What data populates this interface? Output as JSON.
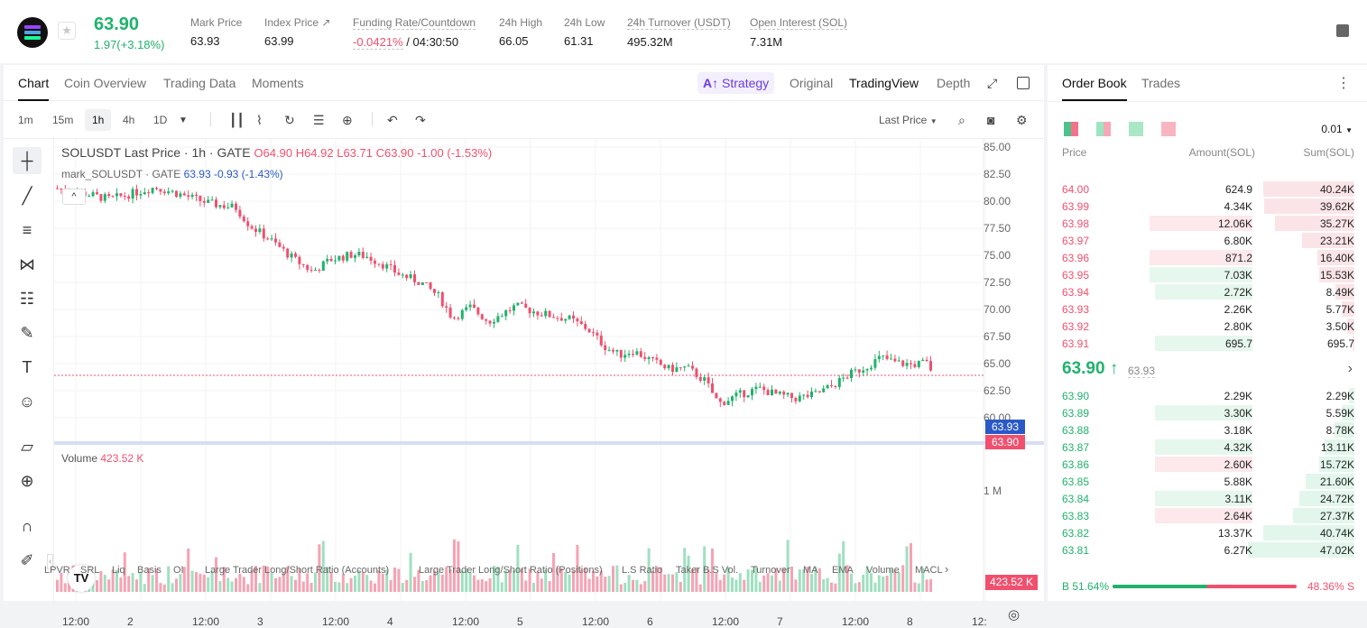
{
  "ticker": {
    "last_price": "63.90",
    "change": "1.97(+3.18%)",
    "stats": [
      {
        "label": "Mark Price",
        "value": "63.93"
      },
      {
        "label": "Index Price ↗",
        "value": "63.99"
      },
      {
        "label": "Funding Rate/Countdown",
        "value_rate": "-0.0421%",
        "value_countdown": "/ 04:30:50"
      },
      {
        "label": "24h High",
        "value": "66.05"
      },
      {
        "label": "24h Low",
        "value": "61.31"
      },
      {
        "label": "24h Turnover (USDT)",
        "value": "495.32M"
      },
      {
        "label": "Open Interest (SOL)",
        "value": "7.31M"
      }
    ]
  },
  "tabs": [
    "Chart",
    "Coin Overview",
    "Trading Data",
    "Moments"
  ],
  "view_tabs": {
    "strategy": "Strategy",
    "original": "Original",
    "tradingview": "TradingView",
    "depth": "Depth"
  },
  "intervals": [
    "1m",
    "15m",
    "1h",
    "4h",
    "1D"
  ],
  "price_select": "Last Price",
  "legend": {
    "symbol": "SOLUSDT Last Price · 1h · GATE",
    "ohlc": "O64.90 H64.92 L63.71 C63.90 -1.00 (-1.53%)",
    "mark_name": "mark_SOLUSDT · GATE",
    "mark_values": "63.93 -0.93 (-1.43%)",
    "volume_label": "Volume",
    "volume_value": "423.52 K"
  },
  "axis": {
    "y_ticks": [
      "85.00",
      "82.50",
      "80.00",
      "77.50",
      "75.00",
      "72.50",
      "70.00",
      "67.50",
      "65.00",
      "62.50",
      "60.00"
    ],
    "mark_tag": "63.93",
    "last_tag": "63.90",
    "vol_tick": "1 M",
    "vol_tag": "423.52 K",
    "x_ticks": [
      "12:00",
      "2",
      "12:00",
      "3",
      "12:00",
      "4",
      "12:00",
      "5",
      "12:00",
      "6",
      "12:00",
      "7",
      "12:00",
      "8",
      "12:"
    ]
  },
  "indicators": [
    "LPVR",
    "SRL",
    "Liq",
    "Basis",
    "OI",
    "Large Trader Long/Short Ratio (Accounts)",
    "Large Trader Long/Short Ratio (Positions)",
    "L.S Ratio",
    "Taker B.S Vol.",
    "Turnover",
    "MA",
    "EMA",
    "Volume",
    "MACL"
  ],
  "tv_logo": "TV",
  "orderbook": {
    "tabs": [
      "Order Book",
      "Trades"
    ],
    "precision": "0.01",
    "headers": {
      "price": "Price",
      "amount": "Amount(SOL)",
      "sum": "Sum(SOL)"
    },
    "asks": [
      {
        "price": "64.00",
        "amount": "624.9",
        "sum": "40.24K",
        "depth": 0.86,
        "amt_frac": 0.0
      },
      {
        "price": "63.99",
        "amount": "4.34K",
        "sum": "39.62K",
        "depth": 0.85,
        "amt_frac": 0.0
      },
      {
        "price": "63.98",
        "amount": "12.06K",
        "sum": "35.27K",
        "depth": 0.75,
        "amt_frac": 0.52
      },
      {
        "price": "63.97",
        "amount": "6.80K",
        "sum": "23.21K",
        "depth": 0.49,
        "amt_frac": 0.0
      },
      {
        "price": "63.96",
        "amount": "871.2",
        "sum": "16.40K",
        "depth": 0.35,
        "amt_frac": 0.52
      },
      {
        "price": "63.95",
        "amount": "7.03K",
        "sum": "15.53K",
        "depth": 0.33,
        "amt_frac": 0.52,
        "green": true
      },
      {
        "price": "63.94",
        "amount": "2.72K",
        "sum": "8.49K",
        "depth": 0.18,
        "amt_frac": 0.49,
        "green": true
      },
      {
        "price": "63.93",
        "amount": "2.26K",
        "sum": "5.77K",
        "depth": 0.12,
        "amt_frac": 0.0
      },
      {
        "price": "63.92",
        "amount": "2.80K",
        "sum": "3.50K",
        "depth": 0.07,
        "amt_frac": 0.0
      },
      {
        "price": "63.91",
        "amount": "695.7",
        "sum": "695.7",
        "depth": 0.02,
        "amt_frac": 0.49,
        "green": true
      }
    ],
    "mid_price": "63.90 ↑",
    "mid_mark": "63.93",
    "bids": [
      {
        "price": "63.90",
        "amount": "2.29K",
        "sum": "2.29K",
        "depth": 0.05,
        "amt_frac": 0.0
      },
      {
        "price": "63.89",
        "amount": "3.30K",
        "sum": "5.59K",
        "depth": 0.12,
        "amt_frac": 0.49
      },
      {
        "price": "63.88",
        "amount": "3.18K",
        "sum": "8.78K",
        "depth": 0.19,
        "amt_frac": 0.0
      },
      {
        "price": "63.87",
        "amount": "4.32K",
        "sum": "13.11K",
        "depth": 0.28,
        "amt_frac": 0.49
      },
      {
        "price": "63.86",
        "amount": "2.60K",
        "sum": "15.72K",
        "depth": 0.33,
        "amt_frac": 0.49,
        "red": true
      },
      {
        "price": "63.85",
        "amount": "5.88K",
        "sum": "21.60K",
        "depth": 0.46,
        "amt_frac": 0.0
      },
      {
        "price": "63.84",
        "amount": "3.11K",
        "sum": "24.72K",
        "depth": 0.52,
        "amt_frac": 0.49
      },
      {
        "price": "63.83",
        "amount": "2.64K",
        "sum": "27.37K",
        "depth": 0.58,
        "amt_frac": 0.49,
        "red": true
      },
      {
        "price": "63.82",
        "amount": "13.37K",
        "sum": "40.74K",
        "depth": 0.86,
        "amt_frac": 0.0
      },
      {
        "price": "63.81",
        "amount": "6.27K",
        "sum": "47.02K",
        "depth": 1.0,
        "amt_frac": 0.0
      }
    ],
    "buy_ratio": "B 51.64%",
    "sell_ratio": "48.36% S",
    "buy_frac": 0.5164
  },
  "colors": {
    "up": "#20b26c",
    "down": "#f0506e",
    "accent": "#6d3be0",
    "mark": "#2a59c7"
  }
}
